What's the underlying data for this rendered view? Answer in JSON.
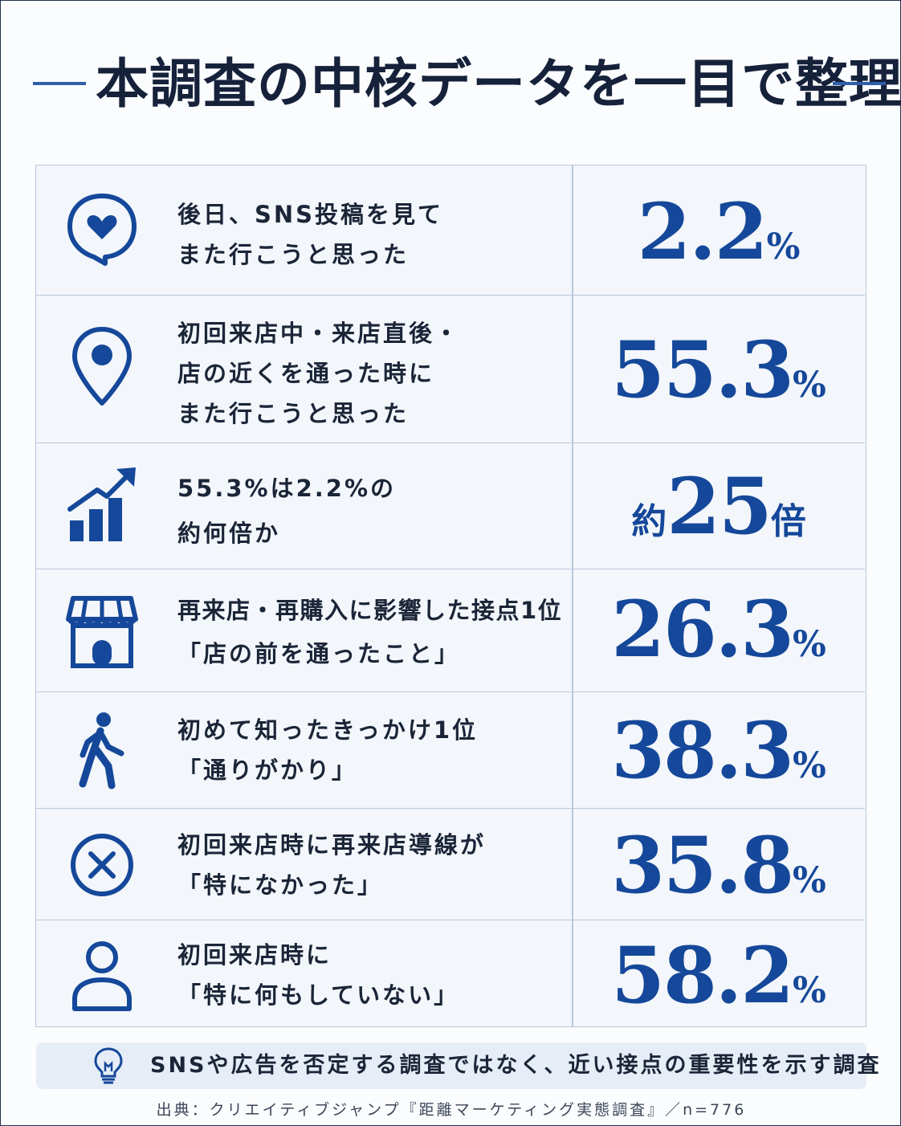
{
  "title": "本調査の中核データを一目で整理",
  "rows": [
    {
      "icon": "heart-speech-bubble-icon",
      "lines": [
        "後日、SNS投稿を見て",
        "また行こうと思った"
      ],
      "prefix": "",
      "value": "2.2",
      "unit": "%"
    },
    {
      "icon": "map-pin-icon",
      "lines": [
        "初回来店中・来店直後・",
        "店の近くを通った時に",
        "また行こうと思った"
      ],
      "prefix": "",
      "value": "55.3",
      "unit": "%"
    },
    {
      "icon": "growth-chart-icon",
      "lines": [
        "55.3%は2.2%の",
        "約何倍か"
      ],
      "prefix": "約",
      "value": "25",
      "unit": "倍"
    },
    {
      "icon": "storefront-icon",
      "lines": [
        "再来店・再購入に影響した接点1位",
        "「店の前を通ったこと」"
      ],
      "prefix": "",
      "value": "26.3",
      "unit": "%"
    },
    {
      "icon": "walking-person-icon",
      "lines": [
        "初めて知ったきっかけ1位",
        "「通りがかり」"
      ],
      "prefix": "",
      "value": "38.3",
      "unit": "%"
    },
    {
      "icon": "close-circle-icon",
      "lines": [
        "初回来店時に再来店導線が",
        "「特になかった」"
      ],
      "prefix": "",
      "value": "35.8",
      "unit": "%"
    },
    {
      "icon": "user-icon",
      "lines": [
        "初回来店時に",
        "「特に何もしていない」"
      ],
      "prefix": "",
      "value": "58.2",
      "unit": "%"
    }
  ],
  "note": {
    "icon": "lightbulb-icon",
    "text": "SNSや広告を否定する調査ではなく、近い接点の重要性を示す調査"
  },
  "source": "出典：クリエイティブジャンプ『距離マーケティング実態調査』／n=776",
  "colors": {
    "accent": "#15489a",
    "line": "#2f5fa8",
    "border": "#b8c8dc",
    "text": "#1b2538"
  }
}
